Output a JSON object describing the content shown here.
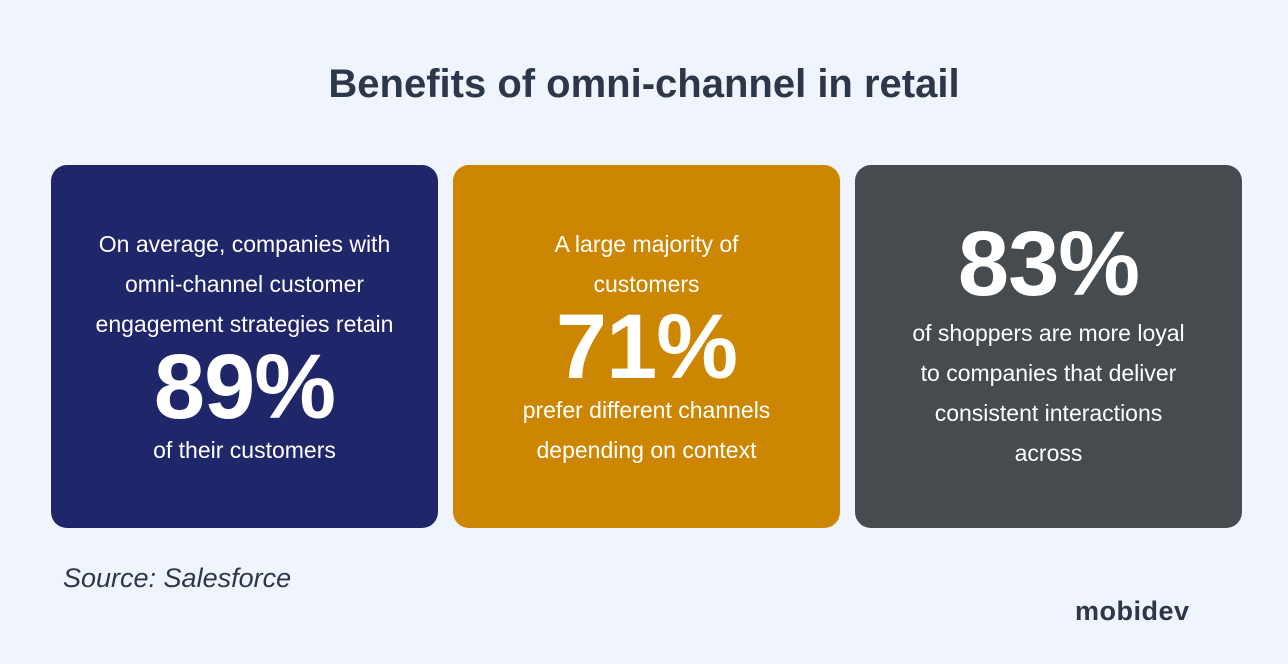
{
  "title": "Benefits of omni-channel in retail",
  "cards": [
    {
      "before": "On average, companies with omni-channel customer engagement strategies retain",
      "stat": "89%",
      "after": "of their customers",
      "color": "#20266a"
    },
    {
      "before": "A large majority of customers",
      "stat": "71%",
      "after": "prefer different channels depending on context",
      "color": "#cd8601"
    },
    {
      "stat": "83%",
      "after": "of shoppers are more loyal to companies that deliver consistent interactions across",
      "color": "#464b50"
    }
  ],
  "source": "Source: Salesforce",
  "logo": "mobidev"
}
